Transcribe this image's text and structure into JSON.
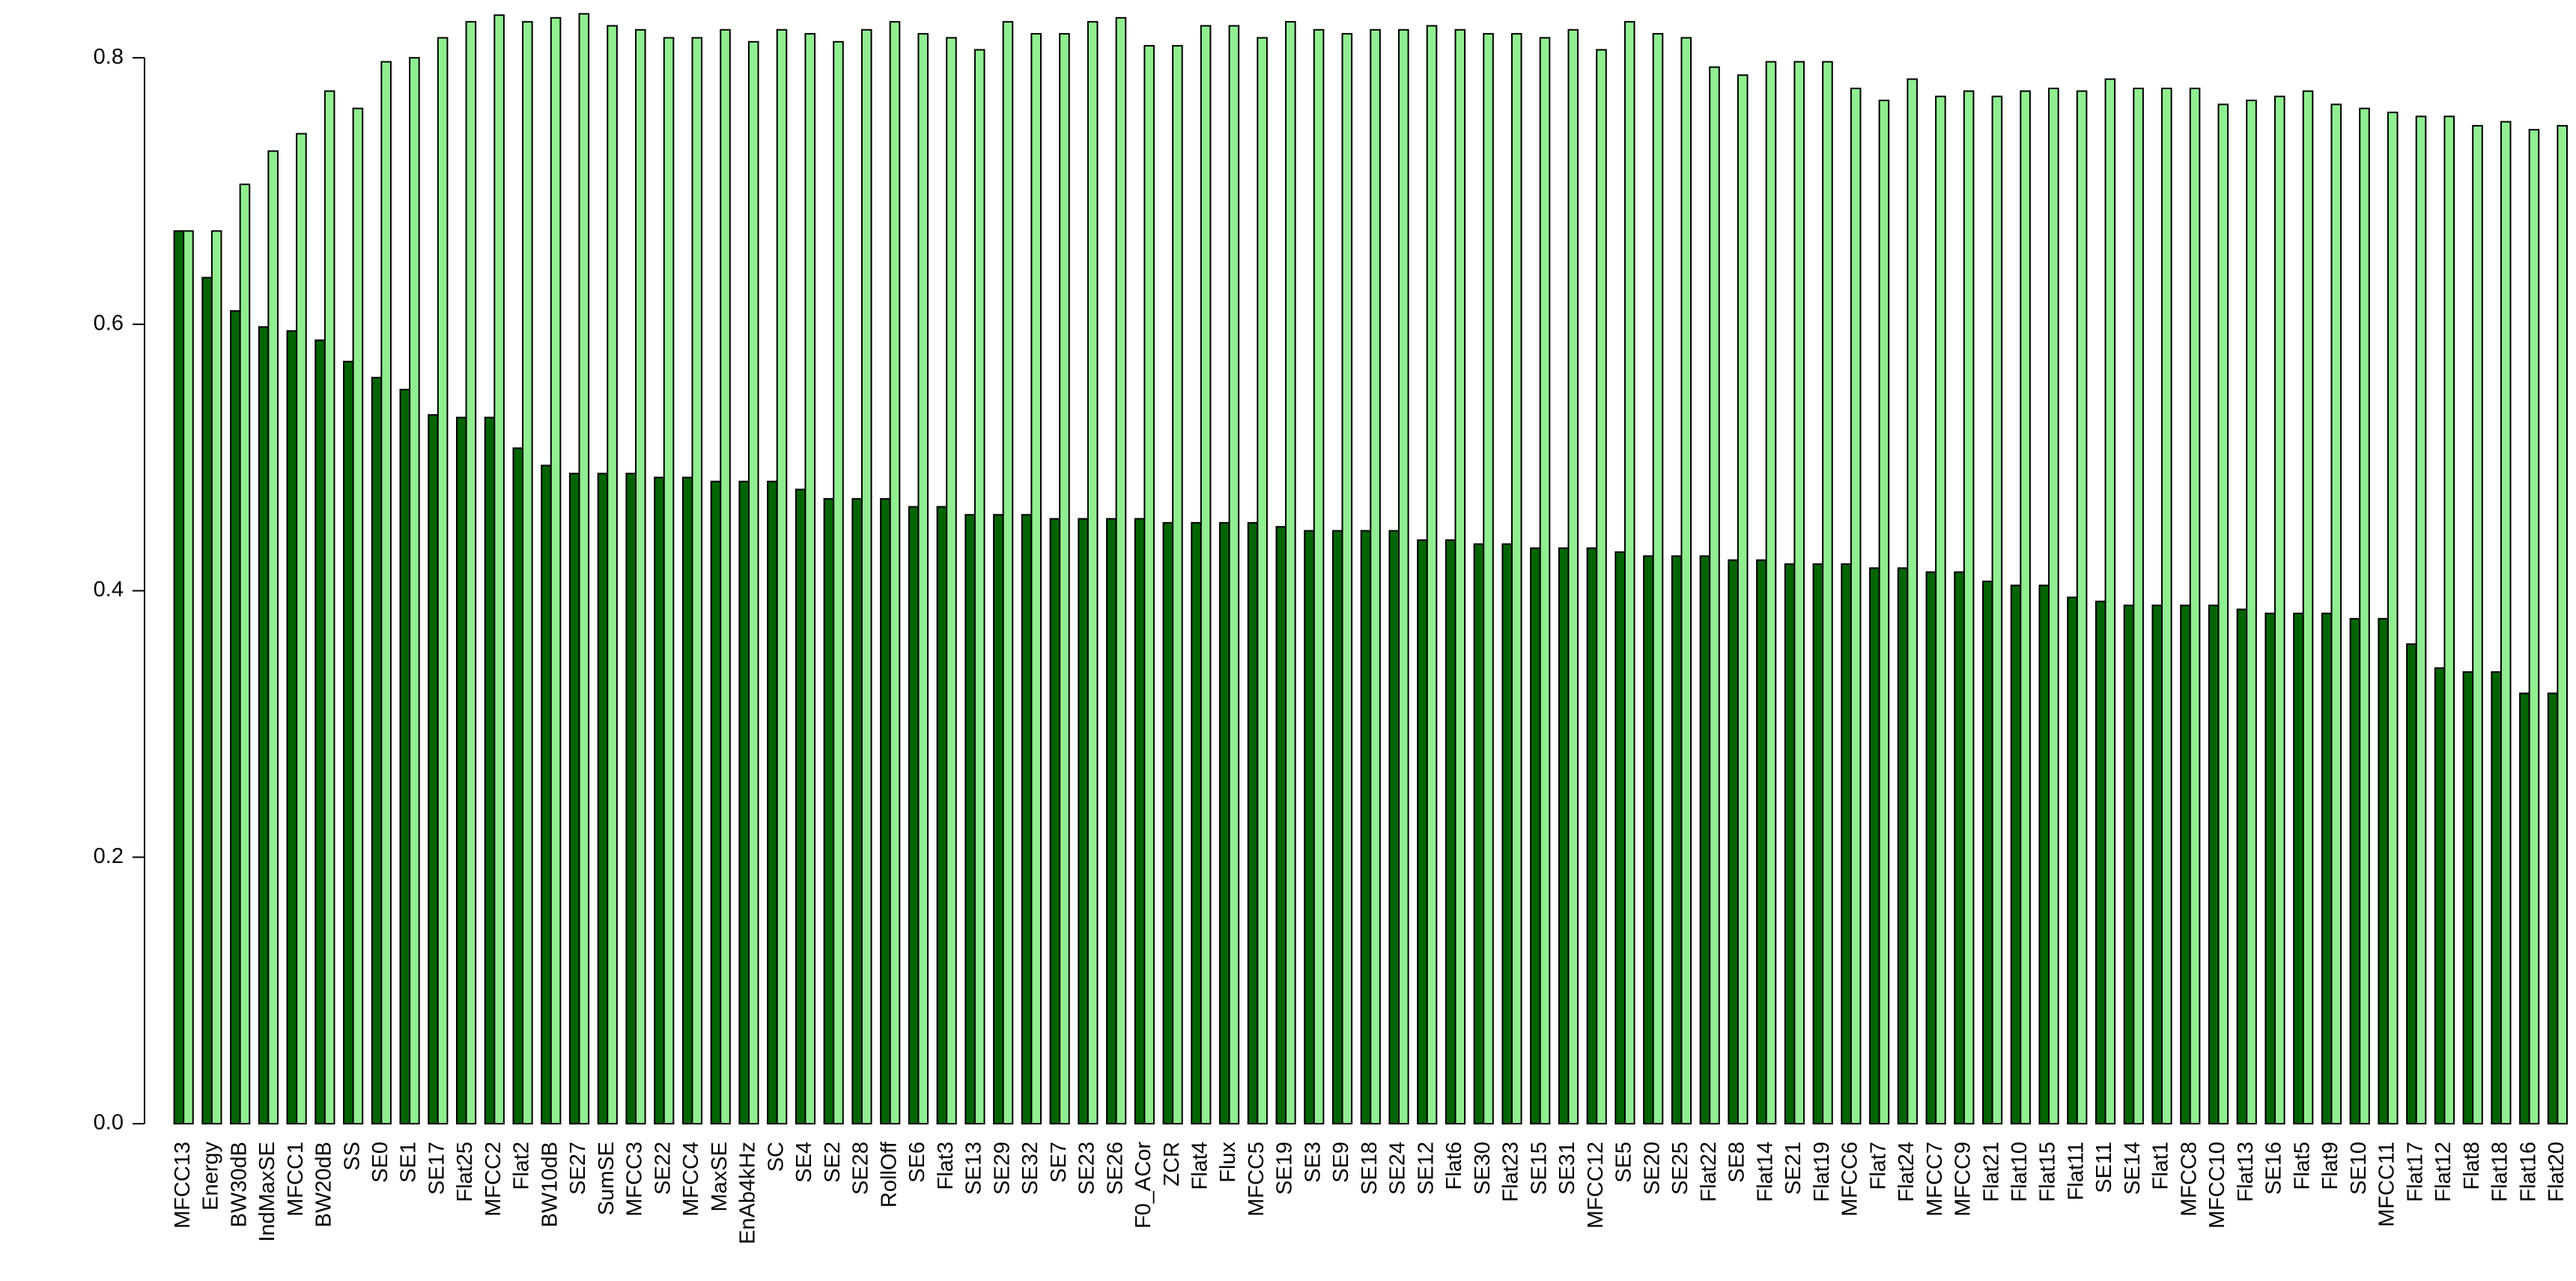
{
  "chart_data": {
    "type": "bar",
    "categories": [
      "MFCC13",
      "Energy",
      "BW30dB",
      "IndMaxSE",
      "MFCC1",
      "BW20dB",
      "SS",
      "SE0",
      "SE1",
      "SE17",
      "Flat25",
      "MFCC2",
      "Flat2",
      "BW10dB",
      "SE27",
      "SumSE",
      "MFCC3",
      "SE22",
      "MFCC4",
      "MaxSE",
      "EnAb4kHz",
      "SC",
      "SE4",
      "SE2",
      "SE28",
      "RollOff",
      "SE6",
      "Flat3",
      "SE13",
      "SE29",
      "SE32",
      "SE7",
      "SE23",
      "SE26",
      "F0_ACor",
      "ZCR",
      "Flat4",
      "Flux",
      "MFCC5",
      "SE19",
      "SE3",
      "SE9",
      "SE18",
      "SE24",
      "SE12",
      "Flat6",
      "SE30",
      "Flat23",
      "SE15",
      "SE31",
      "MFCC12",
      "SE5",
      "SE20",
      "SE25",
      "Flat22",
      "SE8",
      "Flat14",
      "SE21",
      "Flat19",
      "MFCC6",
      "Flat7",
      "Flat24",
      "MFCC7",
      "MFCC9",
      "Flat21",
      "Flat10",
      "Flat15",
      "Flat11",
      "SE11",
      "SE14",
      "Flat1",
      "MFCC8",
      "MFCC10",
      "Flat13",
      "SE16",
      "Flat5",
      "Flat9",
      "SE10",
      "MFCC11",
      "Flat17",
      "Flat12",
      "Flat8",
      "Flat18",
      "Flat16",
      "Flat20"
    ],
    "series": [
      {
        "color": "#006400",
        "values": [
          0.67,
          0.635,
          0.61,
          0.598,
          0.595,
          0.588,
          0.572,
          0.56,
          0.551,
          0.532,
          0.53,
          0.53,
          0.507,
          0.494,
          0.488,
          0.488,
          0.488,
          0.485,
          0.485,
          0.482,
          0.482,
          0.482,
          0.476,
          0.469,
          0.469,
          0.469,
          0.463,
          0.463,
          0.457,
          0.457,
          0.457,
          0.454,
          0.454,
          0.454,
          0.454,
          0.451,
          0.451,
          0.451,
          0.451,
          0.448,
          0.445,
          0.445,
          0.445,
          0.445,
          0.438,
          0.438,
          0.435,
          0.435,
          0.432,
          0.432,
          0.432,
          0.429,
          0.426,
          0.426,
          0.426,
          0.423,
          0.423,
          0.42,
          0.42,
          0.42,
          0.417,
          0.417,
          0.414,
          0.414,
          0.407,
          0.404,
          0.404,
          0.395,
          0.392,
          0.389,
          0.389,
          0.389,
          0.389,
          0.386,
          0.383,
          0.383,
          0.383,
          0.379,
          0.379,
          0.36,
          0.342,
          0.339,
          0.339,
          0.323,
          0.323
        ]
      },
      {
        "color": "#90ee90",
        "values": [
          0.67,
          0.67,
          0.705,
          0.73,
          0.743,
          0.775,
          0.762,
          0.797,
          0.8,
          0.815,
          0.827,
          0.832,
          0.827,
          0.83,
          0.833,
          0.824,
          0.821,
          0.815,
          0.815,
          0.821,
          0.812,
          0.821,
          0.818,
          0.812,
          0.821,
          0.827,
          0.818,
          0.815,
          0.806,
          0.827,
          0.818,
          0.818,
          0.827,
          0.83,
          0.809,
          0.809,
          0.824,
          0.824,
          0.815,
          0.827,
          0.821,
          0.818,
          0.821,
          0.821,
          0.824,
          0.821,
          0.818,
          0.818,
          0.815,
          0.821,
          0.806,
          0.827,
          0.818,
          0.815,
          0.793,
          0.787,
          0.797,
          0.797,
          0.797,
          0.777,
          0.768,
          0.784,
          0.771,
          0.775,
          0.771,
          0.775,
          0.777,
          0.775,
          0.784,
          0.777,
          0.777,
          0.777,
          0.765,
          0.768,
          0.771,
          0.775,
          0.765,
          0.762,
          0.759,
          0.756,
          0.756,
          0.749,
          0.752,
          0.746,
          0.749
        ]
      }
    ],
    "ylim": [
      0,
      0.84
    ],
    "yticks": [
      {
        "value": 0,
        "label": "0.0"
      },
      0.2,
      0.4,
      0.6,
      0.8
    ]
  }
}
